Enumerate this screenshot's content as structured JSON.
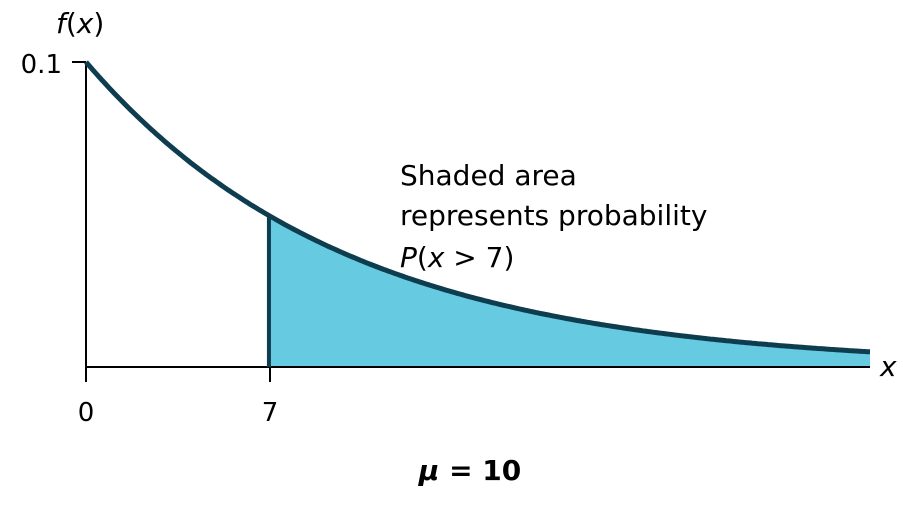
{
  "chart_data": {
    "type": "area",
    "distribution": "exponential",
    "mu": 10,
    "pdf": "f(x) = 0.1 e^(-0.1x)",
    "xlim": [
      0,
      30
    ],
    "ylim": [
      0,
      0.1
    ],
    "shaded_from": 7,
    "x_ticks": [
      "0",
      "7"
    ],
    "y_ticks": [
      "0.1"
    ],
    "ylabel": {
      "f": "f",
      "open": "(",
      "x": "x",
      "close": ")"
    },
    "xlabel": "x",
    "annotation": {
      "line1": "Shaded area",
      "line2": "represents probability",
      "line3_p": "P",
      "line3_rest_open": "(",
      "line3_x": "x",
      "line3_rest": " > 7)"
    },
    "caption": {
      "mu": "μ",
      "rest": " = 10"
    },
    "grid": false,
    "colors": {
      "curve": "#0d3d4e",
      "fill": "#66cbe0",
      "axis": "#000000"
    }
  }
}
